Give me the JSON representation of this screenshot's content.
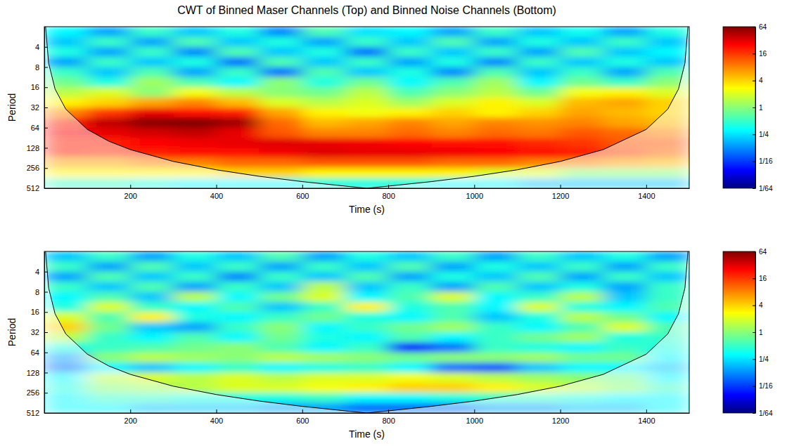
{
  "chart_data": [
    {
      "type": "heatmap",
      "title": "CWT of Binned Maser Channels (Top) and Binned Noise Channels (Bottom)",
      "x_label": "Time (s)",
      "y_label": "Period",
      "xlim": [
        0,
        1500
      ],
      "xticks": [
        200,
        400,
        600,
        800,
        1000,
        1200,
        1400
      ],
      "ylim": [
        2,
        512
      ],
      "yticks": [
        4,
        8,
        16,
        32,
        64,
        128,
        256,
        512
      ],
      "log": "y",
      "x_edges": [
        0,
        100,
        200,
        300,
        400,
        500,
        600,
        700,
        800,
        900,
        1000,
        1100,
        1200,
        1300,
        1400,
        1500
      ],
      "y_edges": [
        2,
        2.83,
        4,
        5.66,
        8,
        11.31,
        16,
        22.63,
        32,
        45.25,
        64,
        90.51,
        128,
        181.02,
        256,
        362.04,
        512
      ],
      "cells": [
        [
          0.3,
          0.15,
          0.5,
          0.2,
          0.4,
          0.12,
          0.6,
          0.25,
          0.3,
          0.15,
          0.5,
          0.2,
          0.35,
          0.15,
          0.4
        ],
        [
          0.2,
          0.5,
          0.15,
          0.6,
          0.2,
          0.4,
          0.15,
          0.5,
          0.2,
          0.6,
          0.15,
          0.4,
          0.2,
          0.5,
          0.2
        ],
        [
          0.4,
          0.15,
          0.5,
          0.12,
          0.6,
          0.2,
          0.4,
          0.1,
          0.5,
          0.2,
          0.5,
          0.15,
          0.6,
          0.2,
          0.3
        ],
        [
          0.15,
          0.5,
          0.2,
          0.4,
          0.1,
          0.6,
          0.2,
          0.5,
          0.15,
          0.4,
          0.12,
          0.5,
          0.2,
          0.4,
          0.2
        ],
        [
          0.5,
          0.2,
          0.6,
          0.15,
          0.5,
          0.1,
          0.6,
          0.2,
          0.4,
          0.12,
          0.6,
          0.2,
          0.5,
          0.15,
          0.6
        ],
        [
          0.8,
          0.4,
          1.2,
          0.6,
          0.3,
          1,
          0.4,
          0.8,
          0.3,
          0.6,
          1.2,
          0.3,
          0.8,
          0.5,
          1
        ],
        [
          1.5,
          2,
          1,
          2.5,
          1.5,
          1,
          0.8,
          1.5,
          0.6,
          1,
          1.5,
          0.8,
          2.5,
          3,
          2
        ],
        [
          3,
          4,
          6,
          8,
          5,
          2,
          1.5,
          2,
          1.2,
          2,
          3,
          2,
          5,
          6,
          4
        ],
        [
          8,
          16,
          30,
          24,
          20,
          6,
          3,
          2.5,
          3,
          4,
          3,
          4,
          6,
          5,
          4
        ],
        [
          20,
          40,
          60,
          64,
          50,
          10,
          5,
          6,
          8,
          6,
          8,
          7,
          8,
          6,
          5
        ],
        [
          25,
          30,
          35,
          40,
          30,
          12,
          8,
          8,
          10,
          8,
          10,
          9,
          12,
          10,
          8
        ],
        [
          20,
          20,
          25,
          28,
          30,
          32,
          30,
          28,
          25,
          24,
          22,
          18,
          16,
          12,
          12
        ],
        [
          20,
          18,
          20,
          22,
          24,
          28,
          32,
          30,
          30,
          28,
          26,
          24,
          20,
          14,
          10
        ],
        [
          6,
          6,
          8,
          8,
          10,
          10,
          12,
          12,
          12,
          10,
          10,
          8,
          8,
          6,
          5
        ],
        [
          3,
          3,
          3,
          3,
          4,
          4,
          3,
          3,
          3,
          3,
          2,
          2,
          1,
          1,
          1
        ],
        [
          0.5,
          0.5,
          0.4,
          0.3,
          0.3,
          0.3,
          0.4,
          0.4,
          0.4,
          0.3,
          0.3,
          0.2,
          0.2,
          0.2,
          0.2
        ]
      ],
      "color_range": [
        0.015625,
        64
      ],
      "color_ticks": [
        {
          "value": 0.015625,
          "label": "1/64"
        },
        {
          "value": 0.0625,
          "label": "1/16"
        },
        {
          "value": 0.25,
          "label": "1/4"
        },
        1,
        4,
        16,
        64
      ],
      "cone_of_influence": {
        "x": [
          3,
          10,
          25,
          50,
          100,
          150,
          200,
          300,
          400,
          500,
          600,
          700,
          750,
          800,
          900,
          1000,
          1100,
          1200,
          1300,
          1400,
          1450,
          1475,
          1490,
          1497
        ],
        "y": [
          2,
          7,
          17,
          34,
          68,
          102,
          136,
          204,
          272,
          340,
          408,
          476,
          512,
          476,
          408,
          340,
          272,
          204,
          136,
          68,
          34,
          17,
          7,
          2
        ]
      }
    },
    {
      "type": "heatmap",
      "x_label": "Time (s)",
      "y_label": "Period",
      "xlim": [
        0,
        1500
      ],
      "xticks": [
        200,
        400,
        600,
        800,
        1000,
        1200,
        1400
      ],
      "ylim": [
        2,
        512
      ],
      "yticks": [
        4,
        8,
        16,
        32,
        64,
        128,
        256,
        512
      ],
      "log": "y",
      "x_edges": [
        0,
        100,
        200,
        300,
        400,
        500,
        600,
        700,
        800,
        900,
        1000,
        1100,
        1200,
        1300,
        1400,
        1500
      ],
      "y_edges": [
        2,
        2.83,
        4,
        5.66,
        8,
        11.31,
        16,
        22.63,
        32,
        45.25,
        64,
        90.51,
        128,
        181.02,
        256,
        362.04,
        512
      ],
      "cells": [
        [
          0.2,
          0.5,
          0.15,
          0.4,
          0.2,
          0.6,
          0.15,
          0.4,
          0.2,
          0.5,
          0.15,
          0.5,
          0.2,
          0.4,
          0.15
        ],
        [
          0.5,
          0.15,
          0.6,
          0.2,
          0.5,
          0.15,
          0.5,
          0.2,
          0.6,
          0.15,
          0.4,
          0.2,
          0.5,
          0.15,
          0.5
        ],
        [
          0.15,
          0.6,
          0.2,
          0.5,
          0.12,
          0.5,
          0.2,
          0.6,
          0.15,
          0.4,
          0.2,
          0.6,
          0.15,
          0.5,
          0.2
        ],
        [
          0.5,
          0.2,
          0.6,
          0.15,
          0.5,
          0.2,
          1.5,
          0.2,
          0.5,
          0.15,
          0.6,
          0.2,
          0.4,
          0.15,
          0.5
        ],
        [
          0.3,
          0.6,
          0.2,
          1.5,
          0.3,
          0.8,
          2,
          0.3,
          0.6,
          2,
          0.3,
          0.5,
          1.5,
          0.2,
          0.5
        ],
        [
          0.4,
          2,
          0.5,
          0.3,
          0.6,
          0.2,
          0.5,
          3,
          0.4,
          0.6,
          0.3,
          2,
          0.4,
          0.3,
          0.6
        ],
        [
          2,
          0.6,
          3,
          0.4,
          0.3,
          0.5,
          0.8,
          0.4,
          0.3,
          0.6,
          0.2,
          0.4,
          1.5,
          0.8,
          0.3
        ],
        [
          4,
          0.8,
          0.2,
          0.15,
          0.5,
          1,
          0.3,
          0.5,
          0.8,
          1.2,
          0.5,
          0.3,
          0.6,
          2,
          0.6
        ],
        [
          1.5,
          0.5,
          0.3,
          0.6,
          0.3,
          0.8,
          0.4,
          0.3,
          0.6,
          0.3,
          0.5,
          0.8,
          1.2,
          0.4,
          0.5
        ],
        [
          0.4,
          0.5,
          0.6,
          0.8,
          1,
          0.6,
          0.3,
          0.5,
          0.05,
          0.1,
          0.5,
          0.4,
          0.3,
          0.5,
          0.4
        ],
        [
          0.15,
          1,
          1.5,
          1.2,
          1,
          1.5,
          1.2,
          1,
          0.8,
          1,
          1,
          1.2,
          0.8,
          0.8,
          0.3
        ],
        [
          0.1,
          0.3,
          0.2,
          0.3,
          0.5,
          0.3,
          0.4,
          0.5,
          0.3,
          0.1,
          0.08,
          0.2,
          0.3,
          0.3,
          0.2
        ],
        [
          0.3,
          1.5,
          2,
          1.5,
          2,
          1.5,
          2,
          2,
          2.5,
          2,
          1.5,
          1.2,
          1,
          0.8,
          0.3
        ],
        [
          0.4,
          1,
          1.2,
          1.5,
          2,
          2,
          2.5,
          3,
          4,
          4,
          3,
          2,
          1.5,
          1,
          0.5
        ],
        [
          0.3,
          0.5,
          0.5,
          0.4,
          0.4,
          0.4,
          0.5,
          0.3,
          0.3,
          0.4,
          0.5,
          0.5,
          0.4,
          0.3,
          0.3
        ],
        [
          0.3,
          0.3,
          0.2,
          0.2,
          0.2,
          0.15,
          0.15,
          0.1,
          0.1,
          0.1,
          0.15,
          0.15,
          0.2,
          0.2,
          0.3
        ]
      ],
      "color_range": [
        0.015625,
        64
      ],
      "color_ticks": [
        {
          "value": 0.015625,
          "label": "1/64"
        },
        {
          "value": 0.0625,
          "label": "1/16"
        },
        {
          "value": 0.25,
          "label": "1/4"
        },
        1,
        4,
        16,
        64
      ],
      "cone_of_influence": {
        "x": [
          3,
          10,
          25,
          50,
          100,
          150,
          200,
          300,
          400,
          500,
          600,
          700,
          750,
          800,
          900,
          1000,
          1100,
          1200,
          1300,
          1400,
          1450,
          1475,
          1490,
          1497
        ],
        "y": [
          2,
          7,
          17,
          34,
          68,
          102,
          136,
          204,
          272,
          340,
          408,
          476,
          512,
          476,
          408,
          340,
          272,
          204,
          136,
          68,
          34,
          17,
          7,
          2
        ]
      }
    }
  ]
}
